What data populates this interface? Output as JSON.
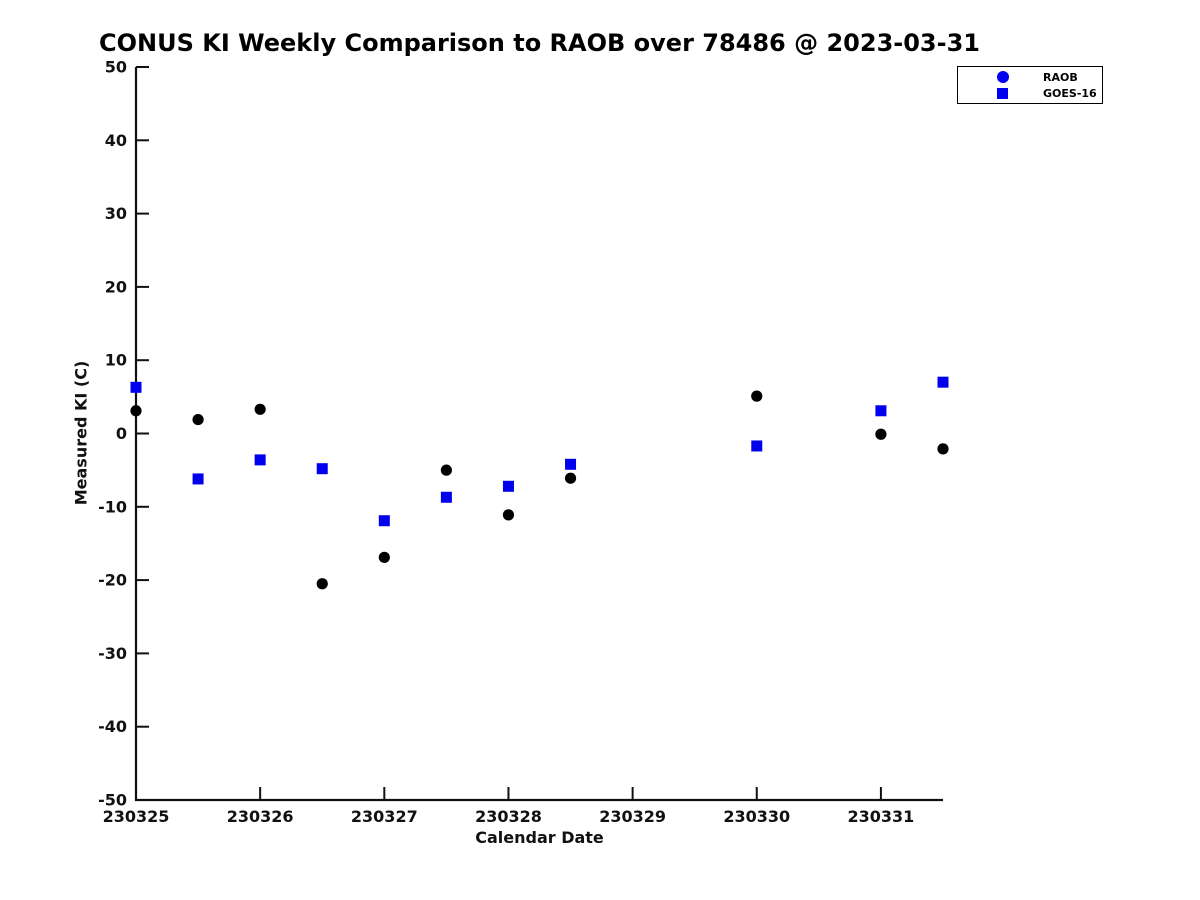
{
  "window": {
    "background": "#ffffff"
  },
  "chart_data": {
    "type": "scatter",
    "title": "CONUS KI Weekly Comparison to RAOB over 78486 @ 2023-03-31",
    "xlabel": "Calendar Date",
    "ylabel": "Measured KI (C)",
    "xlim": [
      230325,
      230331.5
    ],
    "ylim": [
      -50,
      50
    ],
    "xticks": [
      230325,
      230326,
      230327,
      230328,
      230329,
      230330,
      230331
    ],
    "yticks": [
      -50,
      -40,
      -30,
      -20,
      -10,
      0,
      10,
      20,
      30,
      40,
      50
    ],
    "grid": false,
    "axis_color": "#111111",
    "legend": {
      "position": "top-right",
      "entries": [
        {
          "label": "RAOB",
          "marker": "circle",
          "color": "#0000ee"
        },
        {
          "label": "GOES-16",
          "marker": "square",
          "color": "#0000ee"
        }
      ]
    },
    "series": [
      {
        "name": "RAOB",
        "marker": "circle",
        "color": "#000000",
        "x": [
          230325,
          230325.5,
          230326,
          230326.5,
          230327,
          230327.5,
          230328,
          230328.5,
          230330,
          230331,
          230331.5
        ],
        "y": [
          3.1,
          1.9,
          3.3,
          -20.5,
          -16.9,
          -5.0,
          -11.1,
          -6.1,
          5.1,
          -0.1,
          -2.1
        ]
      },
      {
        "name": "GOES-16",
        "marker": "square",
        "color": "#0000ee",
        "x": [
          230325,
          230325.5,
          230326,
          230326.5,
          230327,
          230327.5,
          230328,
          230328.5,
          230330,
          230331,
          230331.5
        ],
        "y": [
          6.3,
          -6.2,
          -3.6,
          -4.8,
          -11.9,
          -8.7,
          -7.2,
          -4.2,
          -1.7,
          3.1,
          7.0
        ]
      }
    ]
  }
}
